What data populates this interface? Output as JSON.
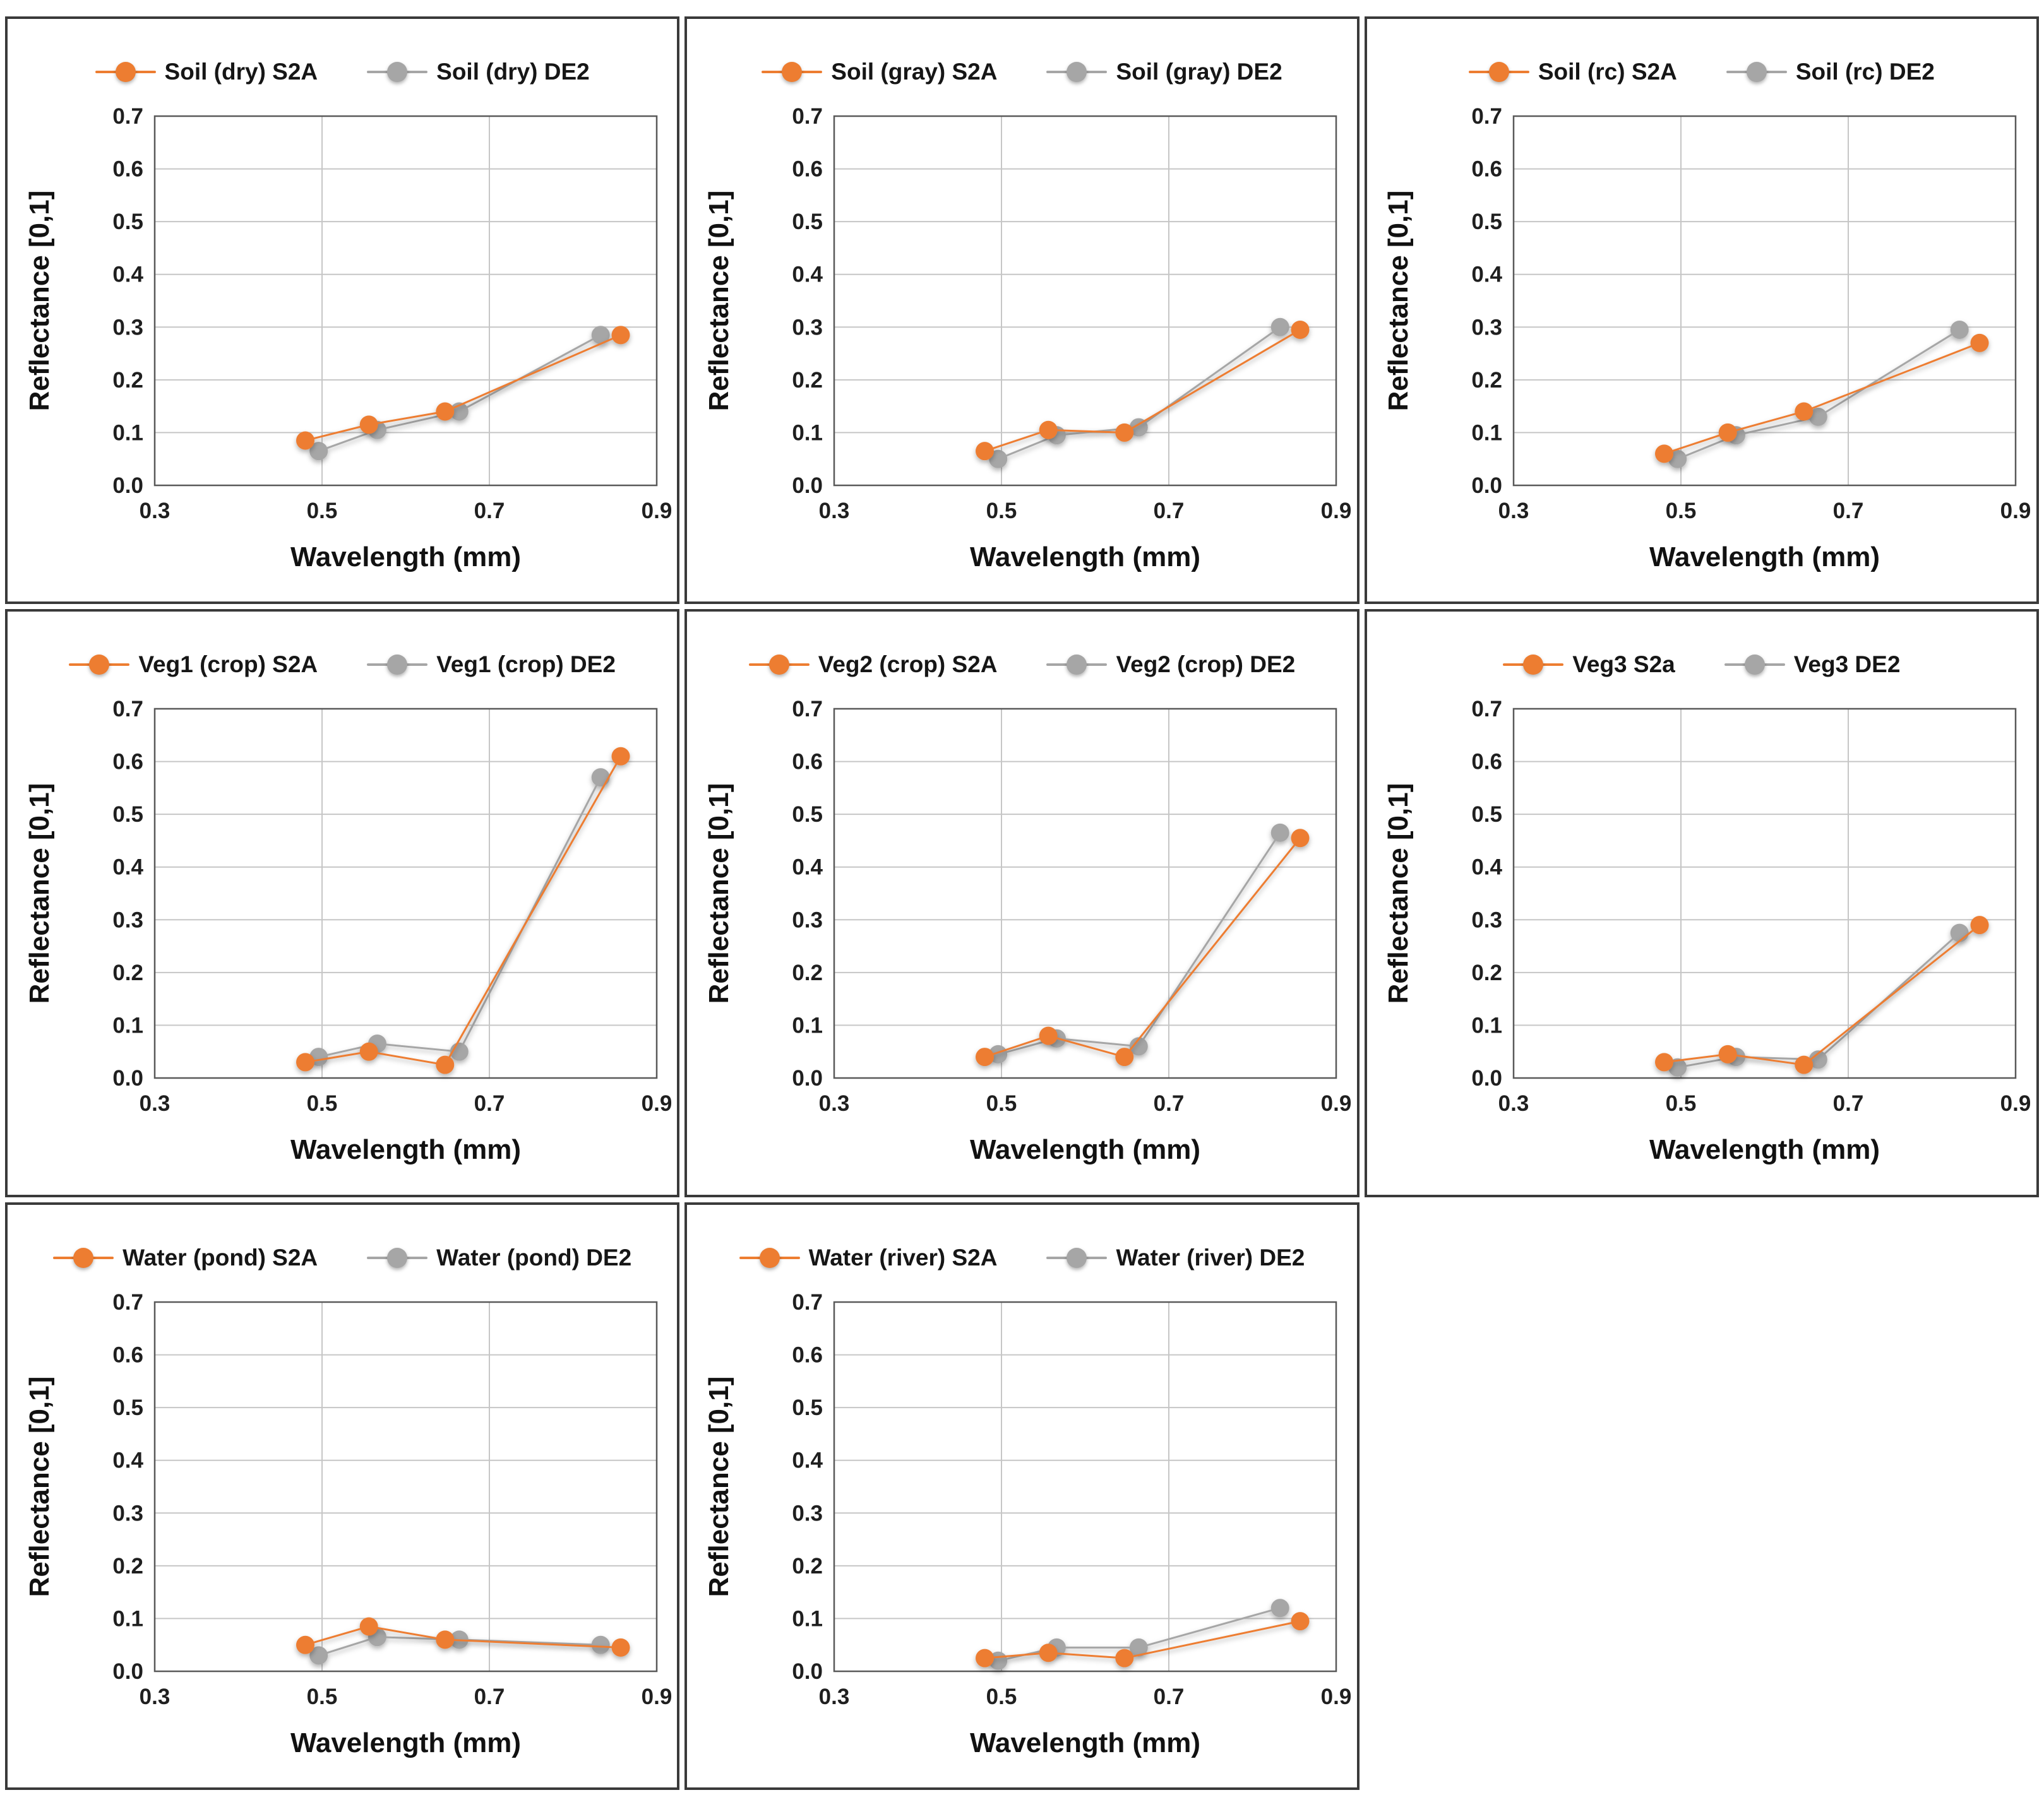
{
  "colors": {
    "s2a": "#ED7D31",
    "de2": "#A6A6A6",
    "gridline": "#C6C6C6",
    "plot_border": "#595959",
    "cell_border": "#3A3A3A",
    "text": "#1F1F1F"
  },
  "chart_data": [
    {
      "type": "line",
      "title": "",
      "xlabel": "Wavelength (mm)",
      "ylabel": "Reflectance [0,1]",
      "xlim": [
        0.3,
        0.9
      ],
      "ylim": [
        0.0,
        0.7
      ],
      "xticks": [
        "0.3",
        "0.5",
        "0.7",
        "0.9"
      ],
      "yticks": [
        "0.0",
        "0.1",
        "0.2",
        "0.3",
        "0.4",
        "0.5",
        "0.6",
        "0.7"
      ],
      "grid": true,
      "legend_position": "top",
      "series": [
        {
          "name": "Soil (dry) S2A",
          "color_key": "s2a",
          "x": [
            0.48,
            0.556,
            0.647,
            0.857
          ],
          "y": [
            0.085,
            0.115,
            0.14,
            0.285
          ]
        },
        {
          "name": "Soil (dry) DE2",
          "color_key": "de2",
          "x": [
            0.496,
            0.566,
            0.664,
            0.833
          ],
          "y": [
            0.065,
            0.105,
            0.14,
            0.285
          ]
        }
      ]
    },
    {
      "type": "line",
      "title": "",
      "xlabel": "Wavelength (mm)",
      "ylabel": "Reflectance [0,1]",
      "xlim": [
        0.3,
        0.9
      ],
      "ylim": [
        0.0,
        0.7
      ],
      "xticks": [
        "0.3",
        "0.5",
        "0.7",
        "0.9"
      ],
      "yticks": [
        "0.0",
        "0.1",
        "0.2",
        "0.3",
        "0.4",
        "0.5",
        "0.6",
        "0.7"
      ],
      "grid": true,
      "legend_position": "top",
      "series": [
        {
          "name": "Soil (gray) S2A",
          "color_key": "s2a",
          "x": [
            0.48,
            0.556,
            0.647,
            0.857
          ],
          "y": [
            0.065,
            0.105,
            0.1,
            0.295
          ]
        },
        {
          "name": "Soil (gray) DE2",
          "color_key": "de2",
          "x": [
            0.496,
            0.566,
            0.664,
            0.833
          ],
          "y": [
            0.05,
            0.095,
            0.11,
            0.3
          ]
        }
      ]
    },
    {
      "type": "line",
      "title": "",
      "xlabel": "Wavelength (mm)",
      "ylabel": "Reflectance [0,1]",
      "xlim": [
        0.3,
        0.9
      ],
      "ylim": [
        0.0,
        0.7
      ],
      "xticks": [
        "0.3",
        "0.5",
        "0.7",
        "0.9"
      ],
      "yticks": [
        "0.0",
        "0.1",
        "0.2",
        "0.3",
        "0.4",
        "0.5",
        "0.6",
        "0.7"
      ],
      "grid": true,
      "legend_position": "top",
      "series": [
        {
          "name": "Soil (rc) S2A",
          "color_key": "s2a",
          "x": [
            0.48,
            0.556,
            0.647,
            0.857
          ],
          "y": [
            0.06,
            0.1,
            0.14,
            0.27
          ]
        },
        {
          "name": "Soil (rc) DE2",
          "color_key": "de2",
          "x": [
            0.496,
            0.566,
            0.664,
            0.833
          ],
          "y": [
            0.05,
            0.095,
            0.13,
            0.295
          ]
        }
      ]
    },
    {
      "type": "line",
      "title": "",
      "xlabel": "Wavelength (mm)",
      "ylabel": "Reflectance [0,1]",
      "xlim": [
        0.3,
        0.9
      ],
      "ylim": [
        0.0,
        0.7
      ],
      "xticks": [
        "0.3",
        "0.5",
        "0.7",
        "0.9"
      ],
      "yticks": [
        "0.0",
        "0.1",
        "0.2",
        "0.3",
        "0.4",
        "0.5",
        "0.6",
        "0.7"
      ],
      "grid": true,
      "legend_position": "top",
      "series": [
        {
          "name": "Veg1 (crop) S2A",
          "color_key": "s2a",
          "x": [
            0.48,
            0.556,
            0.647,
            0.857
          ],
          "y": [
            0.03,
            0.05,
            0.025,
            0.61
          ]
        },
        {
          "name": "Veg1 (crop) DE2",
          "color_key": "de2",
          "x": [
            0.496,
            0.566,
            0.664,
            0.833
          ],
          "y": [
            0.04,
            0.065,
            0.05,
            0.57
          ]
        }
      ]
    },
    {
      "type": "line",
      "title": "",
      "xlabel": "Wavelength (mm)",
      "ylabel": "Reflectance [0,1]",
      "xlim": [
        0.3,
        0.9
      ],
      "ylim": [
        0.0,
        0.7
      ],
      "xticks": [
        "0.3",
        "0.5",
        "0.7",
        "0.9"
      ],
      "yticks": [
        "0.0",
        "0.1",
        "0.2",
        "0.3",
        "0.4",
        "0.5",
        "0.6",
        "0.7"
      ],
      "grid": true,
      "legend_position": "top",
      "series": [
        {
          "name": "Veg2 (crop) S2A",
          "color_key": "s2a",
          "x": [
            0.48,
            0.556,
            0.647,
            0.857
          ],
          "y": [
            0.04,
            0.08,
            0.04,
            0.455
          ]
        },
        {
          "name": "Veg2 (crop) DE2",
          "color_key": "de2",
          "x": [
            0.496,
            0.566,
            0.664,
            0.833
          ],
          "y": [
            0.045,
            0.075,
            0.06,
            0.465
          ]
        }
      ]
    },
    {
      "type": "line",
      "title": "",
      "xlabel": "Wavelength (mm)",
      "ylabel": "Reflectance [0,1]",
      "xlim": [
        0.3,
        0.9
      ],
      "ylim": [
        0.0,
        0.7
      ],
      "xticks": [
        "0.3",
        "0.5",
        "0.7",
        "0.9"
      ],
      "yticks": [
        "0.0",
        "0.1",
        "0.2",
        "0.3",
        "0.4",
        "0.5",
        "0.6",
        "0.7"
      ],
      "grid": true,
      "legend_position": "top",
      "series": [
        {
          "name": "Veg3 S2a",
          "color_key": "s2a",
          "x": [
            0.48,
            0.556,
            0.647,
            0.857
          ],
          "y": [
            0.03,
            0.045,
            0.025,
            0.29
          ]
        },
        {
          "name": "Veg3 DE2",
          "color_key": "de2",
          "x": [
            0.496,
            0.566,
            0.664,
            0.833
          ],
          "y": [
            0.02,
            0.04,
            0.035,
            0.275
          ]
        }
      ]
    },
    {
      "type": "line",
      "title": "",
      "xlabel": "Wavelength (mm)",
      "ylabel": "Reflectance [0,1]",
      "xlim": [
        0.3,
        0.9
      ],
      "ylim": [
        0.0,
        0.7
      ],
      "xticks": [
        "0.3",
        "0.5",
        "0.7",
        "0.9"
      ],
      "yticks": [
        "0.0",
        "0.1",
        "0.2",
        "0.3",
        "0.4",
        "0.5",
        "0.6",
        "0.7"
      ],
      "grid": true,
      "legend_position": "top",
      "series": [
        {
          "name": "Water (pond) S2A",
          "color_key": "s2a",
          "x": [
            0.48,
            0.556,
            0.647,
            0.857
          ],
          "y": [
            0.05,
            0.085,
            0.06,
            0.045
          ]
        },
        {
          "name": "Water (pond) DE2",
          "color_key": "de2",
          "x": [
            0.496,
            0.566,
            0.664,
            0.833
          ],
          "y": [
            0.03,
            0.065,
            0.06,
            0.05
          ]
        }
      ]
    },
    {
      "type": "line",
      "title": "",
      "xlabel": "Wavelength (mm)",
      "ylabel": "Reflectance [0,1]",
      "xlim": [
        0.3,
        0.9
      ],
      "ylim": [
        0.0,
        0.7
      ],
      "xticks": [
        "0.3",
        "0.5",
        "0.7",
        "0.9"
      ],
      "yticks": [
        "0.0",
        "0.1",
        "0.2",
        "0.3",
        "0.4",
        "0.5",
        "0.6",
        "0.7"
      ],
      "grid": true,
      "legend_position": "top",
      "series": [
        {
          "name": "Water (river) S2A",
          "color_key": "s2a",
          "x": [
            0.48,
            0.556,
            0.647,
            0.857
          ],
          "y": [
            0.025,
            0.035,
            0.025,
            0.095
          ]
        },
        {
          "name": "Water (river) DE2",
          "color_key": "de2",
          "x": [
            0.496,
            0.566,
            0.664,
            0.833
          ],
          "y": [
            0.02,
            0.045,
            0.045,
            0.12
          ]
        }
      ]
    }
  ]
}
